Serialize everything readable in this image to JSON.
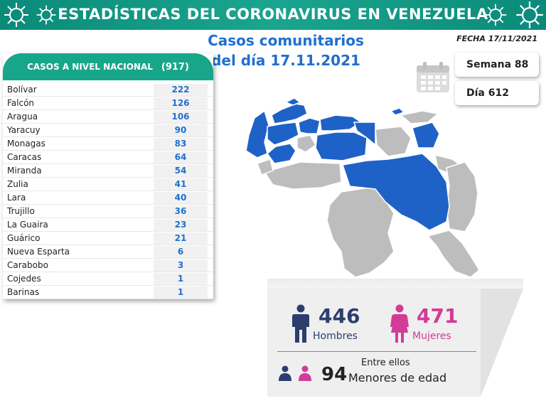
{
  "banner": {
    "title": "ESTADÍSTICAS DEL CORONAVIRUS EN VENEZUELA"
  },
  "subtitle": {
    "line1": "Casos comunitarios",
    "line2": "del día 17.11.2021"
  },
  "fecha": "FECHA 17/11/2021",
  "table": {
    "header": "CASOS A NIVEL NACIONAL",
    "total": "(917)",
    "rows": [
      {
        "state": "Bolívar",
        "value": "222"
      },
      {
        "state": "Falcón",
        "value": "126"
      },
      {
        "state": "Aragua",
        "value": "106"
      },
      {
        "state": "Yaracuy",
        "value": "90"
      },
      {
        "state": "Monagas",
        "value": "83"
      },
      {
        "state": "Caracas",
        "value": "64"
      },
      {
        "state": "Miranda",
        "value": "54"
      },
      {
        "state": "Zulia",
        "value": "41"
      },
      {
        "state": "Lara",
        "value": "40"
      },
      {
        "state": "Trujillo",
        "value": "36"
      },
      {
        "state": "La Guaira",
        "value": "23"
      },
      {
        "state": "Guárico",
        "value": "21"
      },
      {
        "state": "Nueva Esparta",
        "value": "6"
      },
      {
        "state": "Carabobo",
        "value": "3"
      },
      {
        "state": "Cojedes",
        "value": "1"
      },
      {
        "state": "Barinas",
        "value": "1"
      }
    ]
  },
  "semana": "Semana 88",
  "dia": "Día 612",
  "stats": {
    "men_count": "446",
    "men_label": "Hombres",
    "women_count": "471",
    "women_label": "Mujeres",
    "entre": "Entre ellos",
    "menores_count": "94",
    "menores_label": "Menores de edad"
  },
  "colors": {
    "banner": "#1aa58e",
    "map_highlight": "#1e62c8",
    "map_default": "#bdbdbd",
    "men": "#2b3e6e",
    "women": "#d23b98",
    "number_blue": "#1f6fd0"
  },
  "icons": [
    "virus-icon",
    "calendar-icon",
    "man-icon",
    "woman-icon",
    "child-boy-icon",
    "child-girl-icon"
  ]
}
